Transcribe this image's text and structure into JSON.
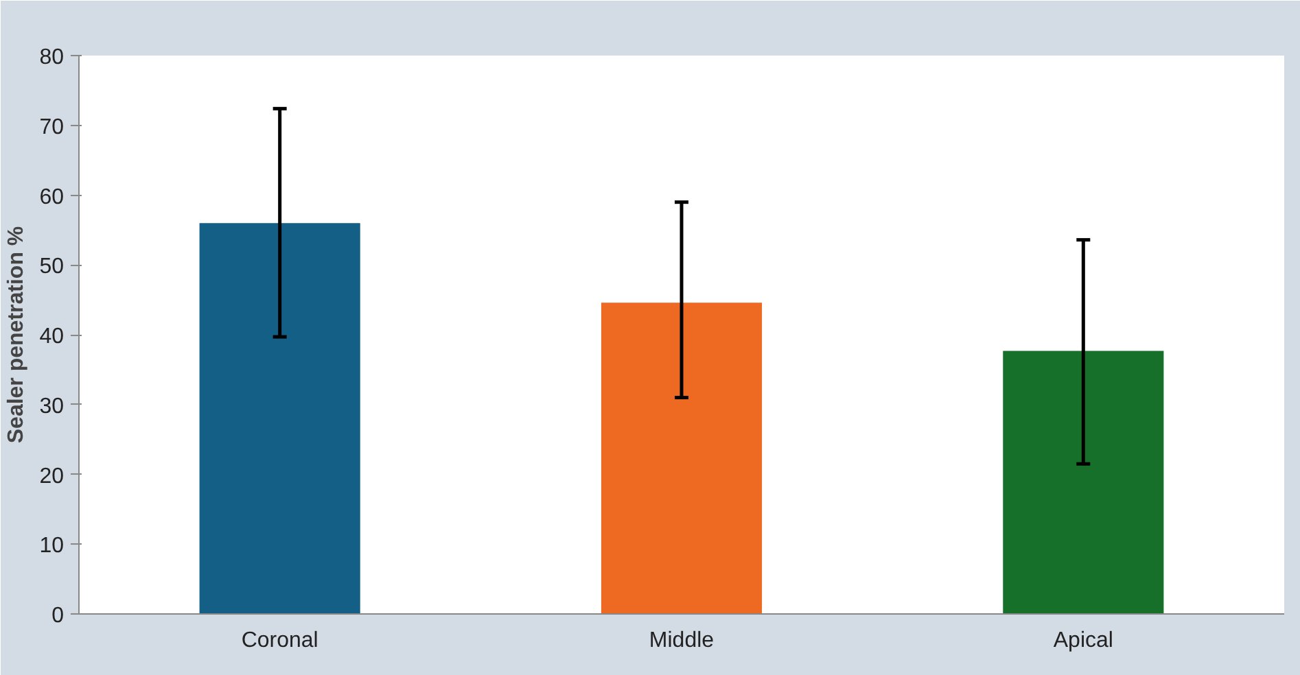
{
  "chart_data": {
    "type": "bar",
    "ylabel": "Sealer penetration %",
    "categories": [
      "Coronal",
      "Middle",
      "Apical"
    ],
    "values": [
      56,
      44.6,
      37.7
    ],
    "colors": [
      "#135f86",
      "#ee6a22",
      "#16702a"
    ],
    "errors": [
      [
        39.7,
        72.4
      ],
      [
        31,
        59
      ],
      [
        21.5,
        53.6
      ]
    ],
    "ylim": [
      0,
      80
    ],
    "yticks": [
      0,
      10,
      20,
      30,
      40,
      50,
      60,
      70,
      80
    ],
    "grid": false
  }
}
